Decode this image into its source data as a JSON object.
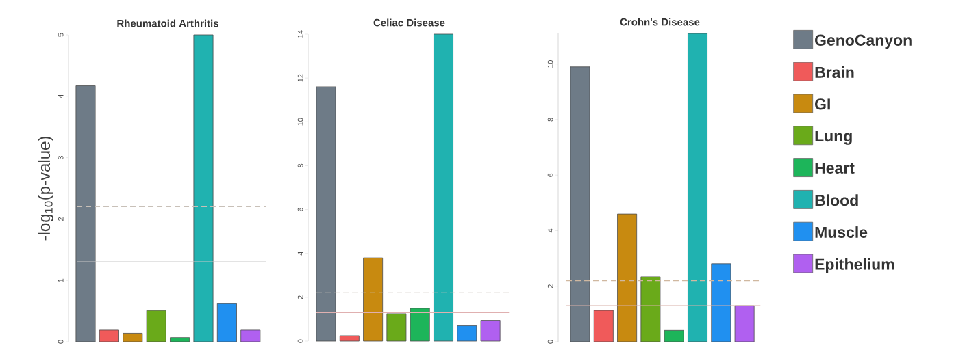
{
  "chart_data": [
    {
      "type": "bar",
      "title": "Rheumatoid Arthritis",
      "ylabel": "-log$_{10}$(p-value)",
      "categories": [
        null,
        null,
        null,
        null,
        null,
        null,
        null,
        null
      ],
      "series": [
        {
          "color": "#6e7b87",
          "values": [
            4.17,
            null,
            null,
            null,
            null,
            null,
            null,
            null
          ]
        },
        {
          "color": "#f05a5a",
          "values": [
            null,
            0.19,
            null,
            null,
            null,
            null,
            null,
            null
          ]
        },
        {
          "color": "#c88a10",
          "values": [
            null,
            null,
            0.14,
            null,
            null,
            null,
            null,
            null
          ]
        },
        {
          "color": "#6aaa1a",
          "values": [
            null,
            null,
            null,
            0.51,
            null,
            null,
            null,
            null
          ]
        },
        {
          "color": "#1db55a",
          "values": [
            null,
            null,
            null,
            null,
            0.07,
            null,
            null,
            null
          ]
        },
        {
          "color": "#20b2b0",
          "values": [
            null,
            null,
            null,
            null,
            null,
            5.0,
            null,
            null
          ]
        },
        {
          "color": "#2090f0",
          "values": [
            null,
            null,
            null,
            null,
            null,
            null,
            0.62,
            null
          ]
        },
        {
          "color": "#b060f0",
          "values": [
            null,
            null,
            null,
            null,
            null,
            null,
            null,
            0.19
          ]
        }
      ],
      "ylim": [
        0,
        5
      ],
      "yticks": [
        0,
        1,
        2,
        3,
        4,
        5
      ],
      "tick_labels": "y",
      "legend": false,
      "ref_lines": [
        {
          "axis": "y",
          "value": 2.2,
          "line_style": "dashed",
          "color": "#c8c0b8"
        },
        {
          "axis": "y",
          "value": 1.3,
          "line_style": "solid",
          "color": "#c8c8c8"
        }
      ]
    },
    {
      "type": "bar",
      "title": "Celiac Disease",
      "categories": [
        null,
        null,
        null,
        null,
        null,
        null,
        null,
        null
      ],
      "series": [
        {
          "color": "#6e7b87",
          "values": [
            11.6,
            null,
            null,
            null,
            null,
            null,
            null,
            null
          ]
        },
        {
          "color": "#f05a5a",
          "values": [
            null,
            0.25,
            null,
            null,
            null,
            null,
            null,
            null
          ]
        },
        {
          "color": "#c88a10",
          "values": [
            null,
            null,
            3.8,
            null,
            null,
            null,
            null,
            null
          ]
        },
        {
          "color": "#6aaa1a",
          "values": [
            null,
            null,
            null,
            1.25,
            null,
            null,
            null,
            null
          ]
        },
        {
          "color": "#1db55a",
          "values": [
            null,
            null,
            null,
            null,
            1.5,
            null,
            null,
            null
          ]
        },
        {
          "color": "#20b2b0",
          "values": [
            null,
            null,
            null,
            null,
            null,
            14.0,
            null,
            null
          ]
        },
        {
          "color": "#2090f0",
          "values": [
            null,
            null,
            null,
            null,
            null,
            null,
            0.7,
            null
          ]
        },
        {
          "color": "#b060f0",
          "values": [
            null,
            null,
            null,
            null,
            null,
            null,
            null,
            0.95
          ]
        }
      ],
      "ylim": [
        0,
        14
      ],
      "yticks": [
        0,
        2,
        4,
        6,
        8,
        10,
        12,
        14
      ],
      "tick_labels": "y",
      "legend": false,
      "ref_lines": [
        {
          "axis": "y",
          "value": 2.2,
          "line_style": "dashed",
          "color": "#c8c0b8"
        },
        {
          "axis": "y",
          "value": 1.3,
          "line_style": "solid",
          "color": "#e0b0b0"
        }
      ]
    },
    {
      "type": "bar",
      "title": "Crohn's Disease",
      "categories": [
        null,
        null,
        null,
        null,
        null,
        null,
        null,
        null
      ],
      "series": [
        {
          "name": "GenoCanyon",
          "color": "#6e7b87",
          "values": [
            9.9,
            null,
            null,
            null,
            null,
            null,
            null,
            null
          ]
        },
        {
          "name": "Brain",
          "color": "#f05a5a",
          "values": [
            null,
            1.13,
            null,
            null,
            null,
            null,
            null,
            null
          ]
        },
        {
          "name": "GI",
          "color": "#c88a10",
          "values": [
            null,
            null,
            4.6,
            null,
            null,
            null,
            null,
            null
          ]
        },
        {
          "name": "Lung",
          "color": "#6aaa1a",
          "values": [
            null,
            null,
            null,
            2.34,
            null,
            null,
            null,
            null
          ]
        },
        {
          "name": "Heart",
          "color": "#1db55a",
          "values": [
            null,
            null,
            null,
            null,
            0.41,
            null,
            null,
            null
          ]
        },
        {
          "name": "Blood",
          "color": "#20b2b0",
          "values": [
            null,
            null,
            null,
            null,
            null,
            11.1,
            null,
            null
          ]
        },
        {
          "name": "Muscle",
          "color": "#2090f0",
          "values": [
            null,
            null,
            null,
            null,
            null,
            null,
            2.81,
            null
          ]
        },
        {
          "name": "Epithelium",
          "color": "#b060f0",
          "values": [
            null,
            null,
            null,
            null,
            null,
            null,
            null,
            1.3
          ]
        }
      ],
      "ylim": [
        0,
        11.1
      ],
      "yticks": [
        0,
        2,
        4,
        6,
        8,
        10
      ],
      "tick_labels": "y",
      "legend": "right",
      "ref_lines": [
        {
          "axis": "y",
          "value": 2.2,
          "line_style": "dashed",
          "color": "#d0b8a0"
        },
        {
          "axis": "y",
          "value": 1.3,
          "line_style": "solid",
          "color": "#d8b0a8"
        }
      ]
    }
  ]
}
